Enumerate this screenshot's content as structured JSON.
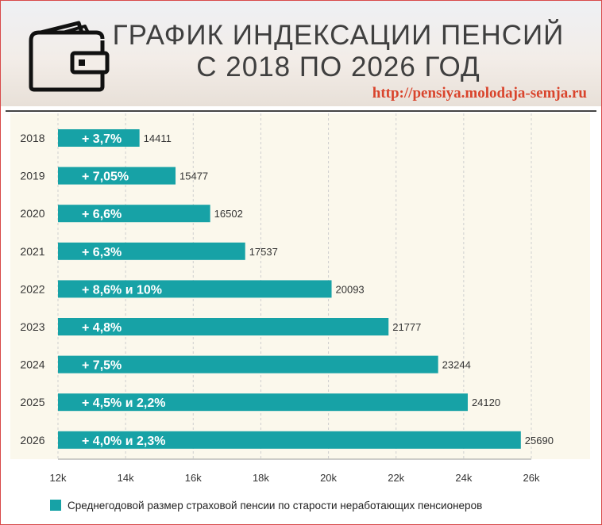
{
  "header": {
    "title_line1": "ГРАФИК ИНДЕКСАЦИИ ПЕНСИЙ",
    "title_line2": "С 2018 ПО 2026 ГОД",
    "site_url": "http://pensiya.molodaja-semja.ru",
    "icon": "wallet-icon"
  },
  "colors": {
    "bar": "#17a2a6",
    "plot_background": "#fbf8ec",
    "site_url": "#d9442c",
    "title": "#3f3f3f"
  },
  "chart_data": {
    "type": "bar",
    "orientation": "horizontal",
    "categories": [
      "2018",
      "2019",
      "2020",
      "2021",
      "2022",
      "2023",
      "2024",
      "2025",
      "2026"
    ],
    "values": [
      14411,
      15477,
      16502,
      17537,
      20093,
      21777,
      23244,
      24120,
      25690
    ],
    "bar_labels": [
      "+ 3,7%",
      "+ 7,05%",
      "+ 6,6%",
      "+ 6,3%",
      "+ 8,6% и 10%",
      "+ 4,8%",
      "+ 7,5%",
      "+ 4,5% и 2,2%",
      "+ 4,0% и 2,3%"
    ],
    "value_labels": [
      "14411",
      "15477",
      "16502",
      "17537",
      "20093",
      "21777",
      "23244",
      "24120",
      "25690"
    ],
    "xlim": [
      12000,
      26000
    ],
    "x_ticks": [
      12000,
      14000,
      16000,
      18000,
      20000,
      22000,
      24000,
      26000
    ],
    "x_tick_labels": [
      "12k",
      "14k",
      "16k",
      "18k",
      "20k",
      "22k",
      "24k",
      "26k"
    ],
    "grid": true,
    "legend": {
      "position": "bottom",
      "entries": [
        "Среднегодовой размер страховой пенсии по старости неработающих пенсионеров"
      ]
    }
  }
}
